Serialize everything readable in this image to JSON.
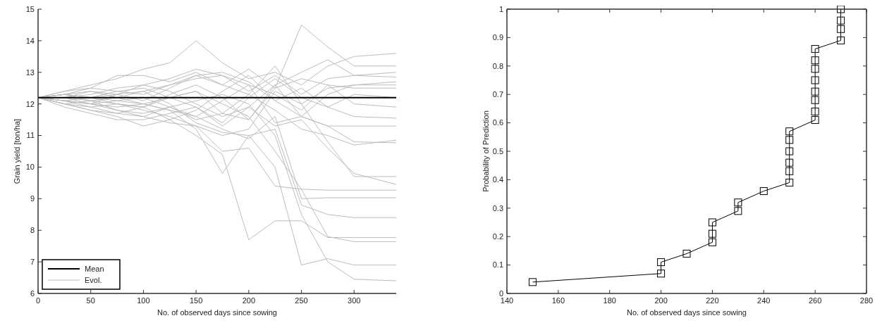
{
  "chart_data": [
    {
      "type": "line",
      "xlabel": "No. of observed days since sowing",
      "ylabel": "Grain yield [ton/ha]",
      "xlim": [
        0,
        340
      ],
      "xticks": [
        0,
        50,
        100,
        150,
        200,
        250,
        300
      ],
      "ylim": [
        6,
        15
      ],
      "yticks": [
        6,
        7,
        8,
        9,
        10,
        11,
        12,
        13,
        14,
        15
      ],
      "legend": "bottom left",
      "grid": false,
      "marker": "none",
      "x": [
        0,
        25,
        50,
        75,
        100,
        125,
        150,
        175,
        200,
        225,
        250,
        275,
        300,
        340
      ],
      "series": [
        {
          "name": "Mean",
          "color": "#000000",
          "x": [
            0,
            340
          ],
          "values": [
            12.2,
            12.2
          ]
        },
        {
          "name": "Evol.",
          "color": "#bdbdbd",
          "values": [
            12.2,
            12.4,
            12.6,
            12.8,
            13.1,
            13.3,
            14.0,
            13.3,
            12.8,
            13.0,
            12.6,
            13.2,
            13.5,
            13.6
          ]
        },
        {
          "color": "#bdbdbd",
          "values": [
            12.2,
            12.3,
            12.5,
            12.9,
            12.9,
            12.7,
            13.0,
            12.6,
            13.1,
            12.5,
            14.5,
            13.8,
            13.2,
            13.2
          ]
        },
        {
          "color": "#bdbdbd",
          "values": [
            12.2,
            12.1,
            12.0,
            12.3,
            12.6,
            12.8,
            13.1,
            12.9,
            12.4,
            12.9,
            12.3,
            12.8,
            12.9,
            13.0
          ]
        },
        {
          "color": "#bdbdbd",
          "values": [
            12.2,
            12.3,
            12.2,
            12.0,
            11.9,
            12.3,
            12.6,
            12.2,
            11.5,
            12.6,
            13.0,
            13.4,
            12.9,
            12.85
          ]
        },
        {
          "color": "#bdbdbd",
          "values": [
            12.2,
            12.0,
            11.8,
            11.6,
            11.3,
            11.5,
            11.8,
            12.4,
            12.9,
            12.1,
            11.6,
            12.3,
            12.6,
            12.7
          ]
        },
        {
          "color": "#bdbdbd",
          "values": [
            12.2,
            12.2,
            12.4,
            12.3,
            12.1,
            12.5,
            12.9,
            12.6,
            12.3,
            13.2,
            12.0,
            12.5,
            12.6,
            12.6
          ]
        },
        {
          "color": "#bdbdbd",
          "values": [
            12.2,
            12.1,
            12.0,
            11.9,
            12.0,
            12.2,
            12.4,
            11.7,
            11.5,
            12.5,
            12.8,
            12.6,
            12.5,
            12.5
          ]
        },
        {
          "color": "#bdbdbd",
          "values": [
            12.2,
            12.3,
            12.1,
            12.2,
            12.4,
            12.6,
            12.8,
            12.9,
            12.6,
            12.3,
            11.8,
            12.6,
            12.0,
            11.9
          ]
        },
        {
          "color": "#bdbdbd",
          "values": [
            12.2,
            11.9,
            11.7,
            11.5,
            11.5,
            11.7,
            11.9,
            11.4,
            12.2,
            12.8,
            12.2,
            11.9,
            11.6,
            11.55
          ]
        },
        {
          "color": "#bdbdbd",
          "values": [
            12.2,
            12.0,
            12.1,
            11.8,
            11.6,
            11.9,
            11.6,
            12.1,
            12.6,
            11.4,
            11.6,
            11.3,
            11.3,
            11.3
          ]
        },
        {
          "color": "#bdbdbd",
          "values": [
            12.2,
            12.1,
            12.0,
            12.1,
            12.2,
            11.9,
            11.5,
            11.7,
            12.3,
            11.8,
            11.2,
            11.0,
            10.7,
            10.85
          ]
        },
        {
          "color": "#bdbdbd",
          "values": [
            12.2,
            12.3,
            12.2,
            12.4,
            12.5,
            12.2,
            11.9,
            11.3,
            11.9,
            12.6,
            11.6,
            11.3,
            10.8,
            10.77
          ]
        },
        {
          "color": "#bdbdbd",
          "values": [
            12.2,
            12.1,
            11.9,
            11.7,
            11.6,
            11.4,
            11.3,
            11.0,
            11.2,
            12.4,
            12.0,
            10.8,
            9.7,
            9.7
          ]
        },
        {
          "color": "#bdbdbd",
          "values": [
            12.2,
            12.2,
            12.3,
            12.5,
            12.6,
            12.4,
            12.0,
            11.6,
            11.9,
            11.3,
            11.5,
            10.6,
            9.8,
            9.45
          ]
        },
        {
          "color": "#bdbdbd",
          "values": [
            12.2,
            12.0,
            11.9,
            12.0,
            11.8,
            11.6,
            11.3,
            10.5,
            10.6,
            9.4,
            9.3,
            9.27,
            9.27,
            9.27
          ]
        },
        {
          "color": "#bdbdbd",
          "values": [
            12.2,
            12.3,
            12.2,
            12.1,
            12.0,
            11.8,
            11.6,
            11.2,
            10.9,
            11.6,
            9.0,
            9.03,
            9.03,
            9.03
          ]
        },
        {
          "color": "#bdbdbd",
          "values": [
            12.2,
            12.1,
            12.2,
            12.3,
            12.4,
            12.0,
            11.4,
            11.1,
            11.0,
            11.2,
            8.8,
            8.5,
            8.4,
            8.4
          ]
        },
        {
          "color": "#bdbdbd",
          "values": [
            12.2,
            12.2,
            12.1,
            12.0,
            11.9,
            11.5,
            11.0,
            10.4,
            7.7,
            8.3,
            8.3,
            7.77,
            7.77,
            7.77
          ]
        },
        {
          "color": "#bdbdbd",
          "values": [
            12.2,
            12.0,
            11.8,
            11.7,
            11.9,
            12.2,
            12.4,
            12.0,
            11.6,
            10.5,
            9.3,
            7.8,
            7.64,
            7.64
          ]
        },
        {
          "color": "#bdbdbd",
          "values": [
            12.2,
            12.3,
            12.4,
            12.2,
            12.0,
            11.8,
            11.2,
            9.8,
            11.0,
            10.0,
            6.9,
            7.1,
            6.9,
            6.9
          ]
        },
        {
          "color": "#bdbdbd",
          "values": [
            12.2,
            12.2,
            12.0,
            11.8,
            11.7,
            11.9,
            12.1,
            12.3,
            12.0,
            11.0,
            8.5,
            7.0,
            6.45,
            6.4
          ]
        },
        {
          "color": "#bdbdbd",
          "values": [
            12.2,
            12.4,
            12.5,
            12.4,
            12.3,
            12.6,
            12.9,
            13.0,
            12.7,
            12.1,
            12.5,
            11.9,
            12.3,
            12.2
          ]
        }
      ]
    },
    {
      "type": "line",
      "xlabel": "No. of observed days since sowing",
      "ylabel": "Probability of Prediction",
      "xlim": [
        140,
        280
      ],
      "xticks": [
        140,
        160,
        180,
        200,
        220,
        240,
        260,
        280
      ],
      "ylim": [
        0,
        1
      ],
      "yticks": [
        0,
        0.1,
        0.2,
        0.3,
        0.4,
        0.5,
        0.6,
        0.7,
        0.8,
        0.9,
        1
      ],
      "legend": false,
      "grid": false,
      "marker": "square",
      "x": [
        150,
        200,
        200,
        210,
        220,
        220,
        220,
        230,
        230,
        240,
        250,
        250,
        250,
        250,
        250,
        250,
        260,
        260,
        260,
        260,
        260,
        260,
        260,
        260,
        270,
        270,
        270,
        270
      ],
      "series": [
        {
          "color": "#000000",
          "values": [
            0.04,
            0.07,
            0.11,
            0.14,
            0.18,
            0.21,
            0.25,
            0.29,
            0.32,
            0.36,
            0.39,
            0.43,
            0.46,
            0.5,
            0.54,
            0.57,
            0.61,
            0.64,
            0.68,
            0.71,
            0.75,
            0.79,
            0.82,
            0.86,
            0.89,
            0.93,
            0.96,
            1
          ]
        }
      ]
    }
  ]
}
